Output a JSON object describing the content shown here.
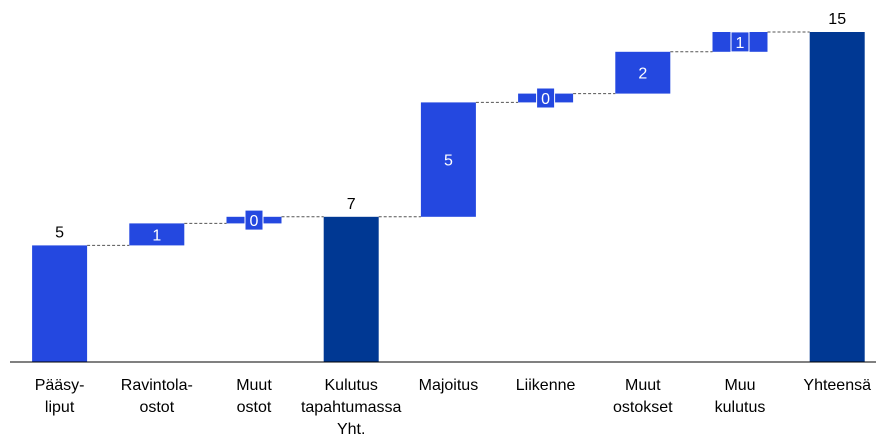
{
  "chart_data": {
    "type": "waterfall",
    "categories": [
      "Pääsy-\nliput",
      "Ravintola-\nostot",
      "Muut\nostot",
      "Kulutus\ntapahtumassa\nYht.",
      "Majoitus",
      "Liikenne",
      "Muut\nostokset",
      "Muu\nkulutus",
      "Yhteensä"
    ],
    "values": [
      5.3,
      1.0,
      0.3,
      6.6,
      5.2,
      0.4,
      1.9,
      0.9,
      15
    ],
    "value_labels": [
      "5",
      "1",
      "0",
      "7",
      "5",
      "0",
      "2",
      "1",
      "15"
    ],
    "absolute": [
      true,
      false,
      false,
      true,
      false,
      false,
      false,
      false,
      true
    ],
    "colors": [
      "#2448e0",
      "#2448e0",
      "#2448e0",
      "#003893",
      "#2448e0",
      "#2448e0",
      "#2448e0",
      "#2448e0",
      "#003893"
    ],
    "ylim": [
      0,
      15
    ]
  }
}
